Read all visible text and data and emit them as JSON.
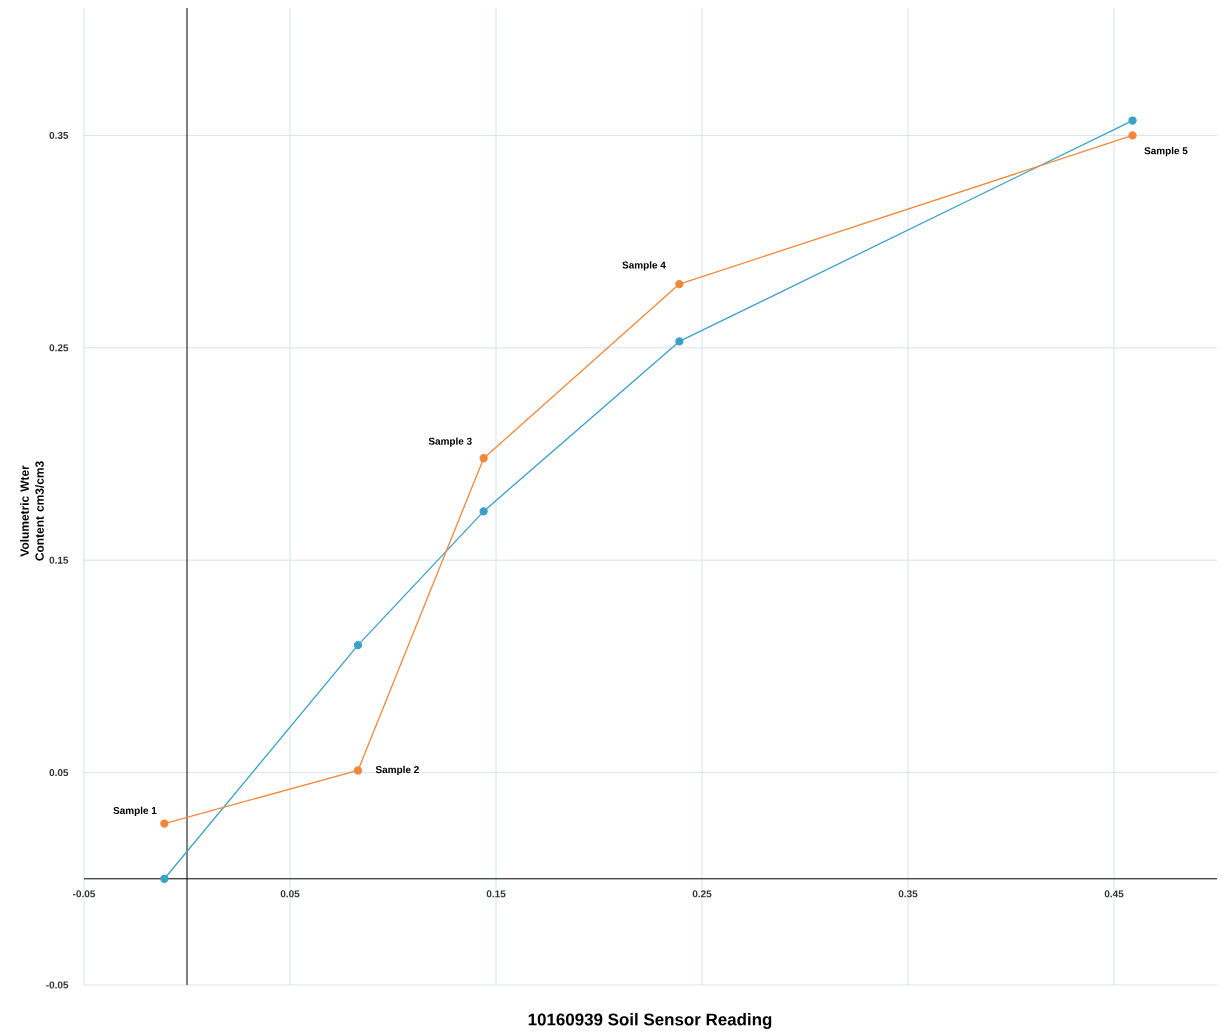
{
  "chart_data": {
    "type": "line",
    "xlabel": "10160939 Soil Sensor Reading",
    "ylabel": "Volumetric Wter Content cm3/cm3",
    "series": [
      {
        "color": "#3aa0c8",
        "x": [
          -0.011,
          0.083,
          0.144,
          0.239,
          0.459
        ],
        "values": [
          0.0,
          0.11,
          0.173,
          0.253,
          0.357
        ]
      },
      {
        "color": "#f0883a",
        "x": [
          -0.011,
          0.083,
          0.144,
          0.239,
          0.459
        ],
        "values": [
          0.026,
          0.051,
          0.198,
          0.28,
          0.35
        ]
      }
    ],
    "xlim": [
      -0.05,
      0.5
    ],
    "ylim": [
      -0.05,
      0.41
    ],
    "xticks": [
      -0.05,
      0.05,
      0.15,
      0.25,
      0.35,
      0.45
    ],
    "yticks": [
      -0.05,
      0.05,
      0.15,
      0.25,
      0.35
    ],
    "grid": true,
    "marker": "circle",
    "annotations": [
      {
        "text": "Sample 1",
        "x": -0.011,
        "y": 0.026
      },
      {
        "text": "Sample 2",
        "x": 0.083,
        "y": 0.051
      },
      {
        "text": "Sample 3",
        "x": 0.144,
        "y": 0.198
      },
      {
        "text": "Sample 4",
        "x": 0.239,
        "y": 0.28
      },
      {
        "text": "Sample 5",
        "x": 0.459,
        "y": 0.35
      }
    ]
  }
}
